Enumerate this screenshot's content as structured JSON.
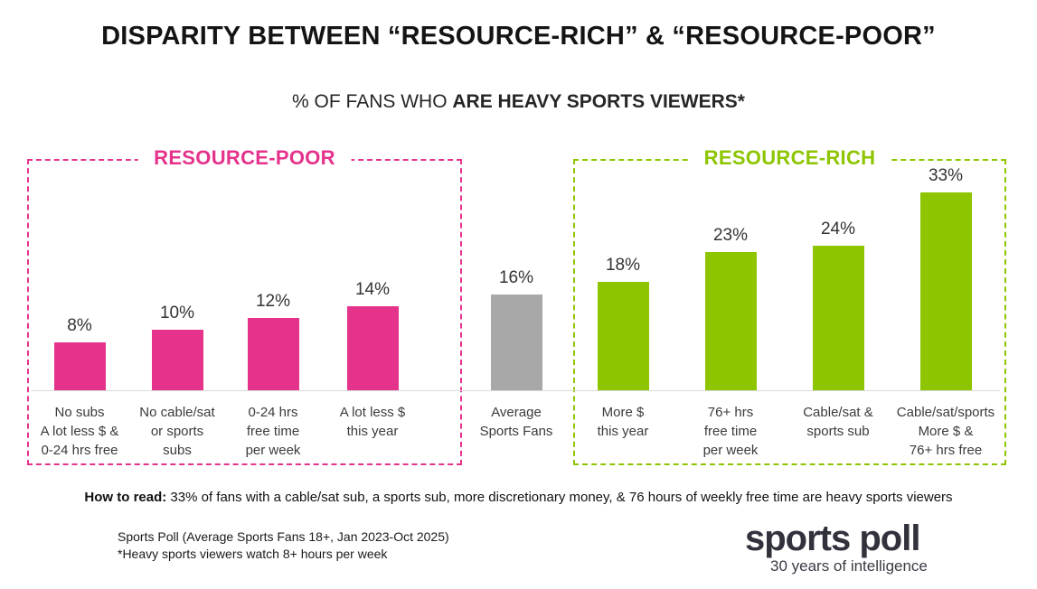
{
  "title": "DISPARITY BETWEEN “RESOURCE-RICH” & “RESOURCE-POOR”",
  "subtitle": {
    "prefix": "% OF FANS WHO ",
    "bold": "ARE HEAVY SPORTS VIEWERS*"
  },
  "groups": {
    "poor": {
      "label": "RESOURCE-POOR",
      "color": "#E5338C"
    },
    "rich": {
      "label": "RESOURCE-RICH",
      "color": "#8DC500"
    }
  },
  "chart_data": {
    "type": "bar",
    "unit": "%",
    "ylim": [
      0,
      35
    ],
    "grid": false,
    "legend": "none",
    "colors": {
      "resource-poor": "#E5338C",
      "average": "#A8A8A8",
      "resource-rich": "#8DC500"
    },
    "bars": [
      {
        "label": "No subs\nA lot less $ &\n0-24 hrs free",
        "value": 8,
        "group": "resource-poor"
      },
      {
        "label": "No cable/sat\nor sports\nsubs",
        "value": 10,
        "group": "resource-poor"
      },
      {
        "label": "0-24 hrs\nfree time\nper week",
        "value": 12,
        "group": "resource-poor"
      },
      {
        "label": "A lot less $\nthis year",
        "value": 14,
        "group": "resource-poor"
      },
      {
        "label": "Average\nSports Fans",
        "value": 16,
        "group": "average"
      },
      {
        "label": "More $\nthis year",
        "value": 18,
        "group": "resource-rich"
      },
      {
        "label": "76+ hrs\nfree time\nper week",
        "value": 23,
        "group": "resource-rich"
      },
      {
        "label": "Cable/sat &\nsports sub",
        "value": 24,
        "group": "resource-rich"
      },
      {
        "label": "Cable/sat/sports\nMore $ &\n76+ hrs free",
        "value": 33,
        "group": "resource-rich"
      }
    ]
  },
  "footnotes": {
    "how_to_read_label": "How to read:",
    "how_to_read_text": " 33% of fans with a cable/sat sub, a sports sub, more discretionary money, & 76 hours of weekly free time are heavy sports viewers",
    "source_line1": "Sports Poll (Average Sports Fans 18+, Jan 2023-Oct 2025)",
    "source_line2": "*Heavy sports viewers watch 8+ hours per week"
  },
  "logo": {
    "name": "sports poll",
    "tagline": "30 years of intelligence"
  }
}
